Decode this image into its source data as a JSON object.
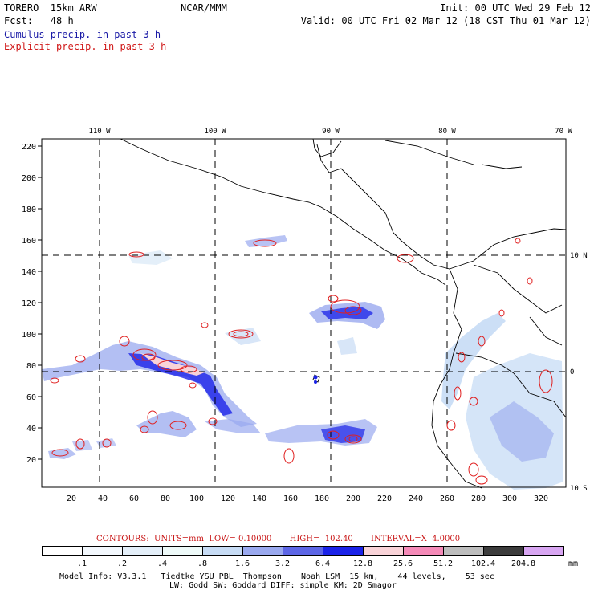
{
  "header": {
    "model": "TORERO  15km ARW",
    "org": "NCAR/MMM",
    "init": "Init: 00 UTC Wed 29 Feb 12",
    "fcst": "Fcst:   48 h",
    "valid": "Valid: 00 UTC Fri 02 Mar 12 (18 CST Thu 01 Mar 12)",
    "field1": "Cumulus precip. in past 3 h",
    "field2": "Explicit precip. in past 3 h"
  },
  "colors": {
    "field1": "#1a1aa6",
    "field2": "#d01818",
    "grid": "#000000",
    "contour": "#e02020"
  },
  "map": {
    "lon_labels": [
      "110 W",
      "100 W",
      "90 W",
      "80 W",
      "70 W"
    ],
    "lat_labels": [
      "10 N",
      "0",
      "10 S"
    ],
    "y_ticks": [
      "220",
      "200",
      "180",
      "160",
      "140",
      "120",
      "100",
      "80",
      "60",
      "40",
      "20"
    ],
    "x_ticks": [
      "20",
      "40",
      "60",
      "80",
      "100",
      "120",
      "140",
      "160",
      "180",
      "200",
      "220",
      "240",
      "260",
      "280",
      "300",
      "320"
    ]
  },
  "contours_info": {
    "text": "CONTOURS:  UNITS=mm  LOW= 0.10000       HIGH=  102.40       INTERVAL=X  4.0000"
  },
  "colorbar": {
    "labels": [
      ".1",
      ".2",
      ".4",
      ".8",
      "1.6",
      "3.2",
      "6.4",
      "12.8",
      "25.6",
      "51.2",
      "102.4",
      "204.8"
    ],
    "unit": "mm",
    "colors": [
      "#ffffff",
      "#f3f8fd",
      "#e4eff9",
      "#eefaf9",
      "#c7dcf5",
      "#9aa9ef",
      "#5d66e6",
      "#1a22e8",
      "#f9d3d8",
      "#f58ab8",
      "#bdbdbd",
      "#3c3c3c",
      "#d8a6f2"
    ]
  },
  "footer": {
    "line1": "Model Info: V3.3.1   Tiedtke YSU PBL  Thompson    Noah LSM  15 km,    44 levels,    53 sec",
    "line2": "LW: Godd SW: Goddard DIFF: simple KM: 2D Smagor"
  }
}
